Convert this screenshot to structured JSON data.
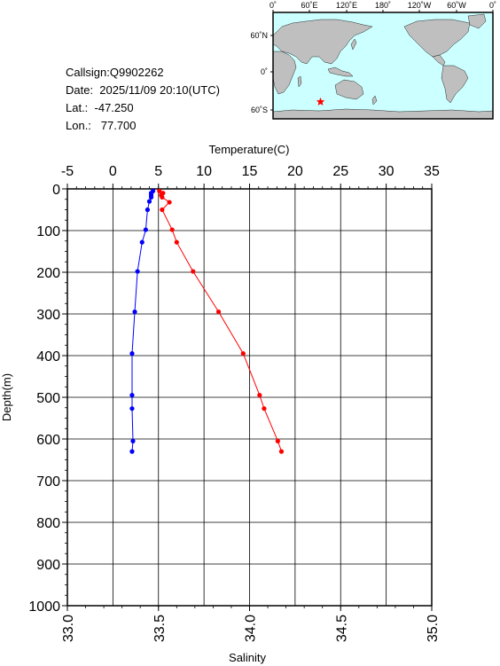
{
  "float_info": {
    "callsign": "Callsign:Q9902262",
    "date": "Date:  2025/11/09 20:10(UTC)",
    "lat": "Lat.:  -47.250",
    "lon": "Lon.:   77.700"
  },
  "map": {
    "lon_labels": [
      "0˚",
      "60˚E",
      "120˚E",
      "180˚",
      "120˚W",
      "60˚W",
      "0˚"
    ],
    "lat_labels": [
      "60˚N",
      "0˚",
      "60˚S"
    ],
    "float_lat": -47.25,
    "float_lon": 77.7,
    "ocean_color": "#ccffff",
    "land_color": "#bfbfbf",
    "marker_color": "#ff0000",
    "marker": "star-icon"
  },
  "chart_data": {
    "type": "line",
    "x_top_label": "Temperature(C)",
    "x_bottom_label": "Salinity",
    "y_label": "Depth(m)",
    "temperature_range": [
      -5,
      35
    ],
    "temperature_ticks": [
      "-5",
      "0",
      "5",
      "10",
      "15",
      "20",
      "25",
      "30",
      "35"
    ],
    "salinity_range": [
      33.0,
      35.0
    ],
    "salinity_ticks": [
      "33.0",
      "33.5",
      "34.0",
      "34.5",
      "35.0"
    ],
    "depth_range": [
      0,
      1000
    ],
    "depth_ticks": [
      "0",
      "100",
      "200",
      "300",
      "400",
      "500",
      "600",
      "700",
      "800",
      "900",
      "1000"
    ],
    "y_inverted": true,
    "grid": true,
    "series": [
      {
        "quantity": "temperature",
        "color": "#ff0000",
        "depth": [
          5,
          10,
          15,
          20,
          32,
          50,
          98,
          128,
          198,
          295,
          395,
          495,
          527,
          605,
          630
        ],
        "values": [
          5.1,
          5.5,
          5.3,
          5.4,
          6.2,
          5.4,
          6.5,
          7.0,
          8.8,
          11.6,
          14.3,
          16.1,
          16.6,
          18.1,
          18.5
        ]
      },
      {
        "quantity": "salinity",
        "color": "#0000ff",
        "depth": [
          5,
          10,
          15,
          20,
          30,
          50,
          98,
          128,
          198,
          295,
          395,
          495,
          527,
          605,
          630
        ],
        "values": [
          33.47,
          33.46,
          33.46,
          33.46,
          33.45,
          33.44,
          33.43,
          33.41,
          33.385,
          33.37,
          33.355,
          33.355,
          33.355,
          33.36,
          33.355
        ]
      }
    ]
  }
}
